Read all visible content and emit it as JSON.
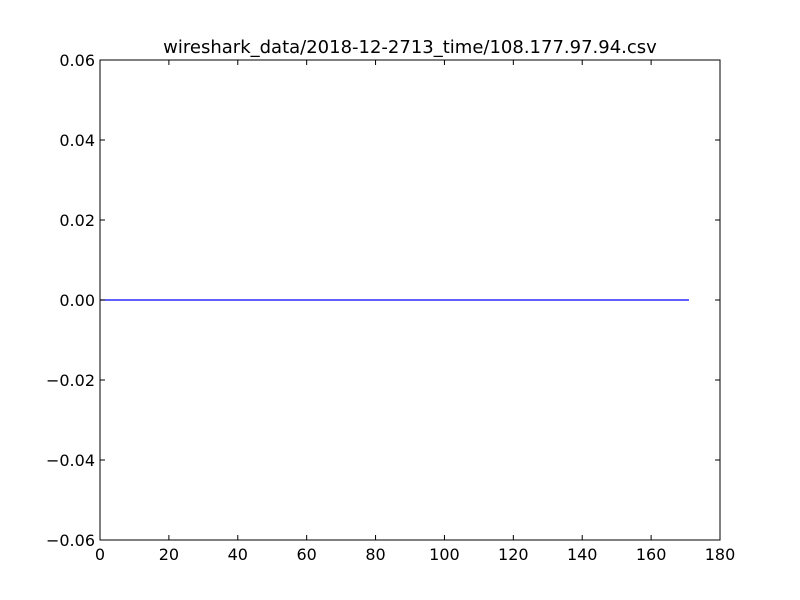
{
  "chart_data": {
    "type": "line",
    "title": "wireshark_data/2018-12-2713_time/108.177.97.94.csv",
    "xlabel": "",
    "ylabel": "",
    "xlim": [
      0,
      180
    ],
    "ylim": [
      -0.06,
      0.06
    ],
    "x_ticks": [
      0,
      20,
      40,
      60,
      80,
      100,
      120,
      140,
      160,
      180
    ],
    "x_tick_labels": [
      "0",
      "20",
      "40",
      "60",
      "80",
      "100",
      "120",
      "140",
      "160",
      "180"
    ],
    "y_ticks": [
      -0.06,
      -0.04,
      -0.02,
      0.0,
      0.02,
      0.04,
      0.06
    ],
    "y_tick_labels": [
      "−0.06",
      "−0.04",
      "−0.02",
      "0.00",
      "0.02",
      "0.04",
      "0.06"
    ],
    "grid": false,
    "series": [
      {
        "color": "#0000ff",
        "x": [
          0,
          171
        ],
        "y": [
          0,
          0
        ]
      }
    ]
  }
}
